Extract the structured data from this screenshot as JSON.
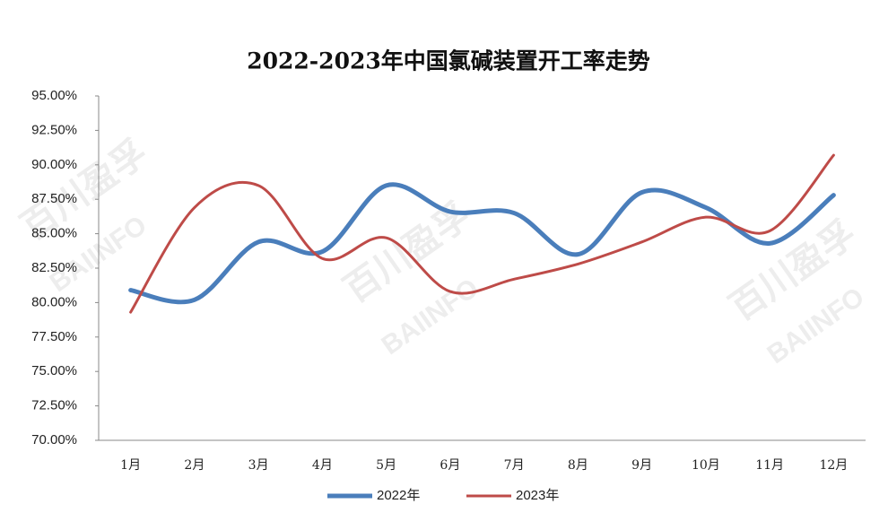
{
  "chart_data": {
    "type": "line",
    "title": "2022-2023年中国氯碱装置开工率走势",
    "watermark": [
      "百川盈孚",
      "BAIINFO"
    ],
    "categories": [
      "1月",
      "2月",
      "3月",
      "4月",
      "5月",
      "6月",
      "7月",
      "8月",
      "9月",
      "10月",
      "11月",
      "12月"
    ],
    "series": [
      {
        "name": "2022年",
        "color": "#4a7ebb",
        "values": [
          80.9,
          80.2,
          84.4,
          83.7,
          88.5,
          86.6,
          86.5,
          83.5,
          88.0,
          86.9,
          84.3,
          87.8
        ]
      },
      {
        "name": "2023年",
        "color": "#be4b48",
        "values": [
          79.3,
          86.9,
          88.5,
          83.2,
          84.7,
          80.8,
          81.7,
          82.8,
          84.4,
          86.2,
          85.2,
          90.7
        ]
      }
    ],
    "ylim": [
      70,
      95
    ],
    "yticks": [
      {
        "value": 70,
        "label": "70.00%"
      },
      {
        "value": 72.5,
        "label": "72.50%"
      },
      {
        "value": 75,
        "label": "75.00%"
      },
      {
        "value": 77.5,
        "label": "77.50%"
      },
      {
        "value": 80,
        "label": "80.00%"
      },
      {
        "value": 82.5,
        "label": "82.50%"
      },
      {
        "value": 85,
        "label": "85.00%"
      },
      {
        "value": 87.5,
        "label": "87.50%"
      },
      {
        "value": 90,
        "label": "90.00%"
      },
      {
        "value": 92.5,
        "label": "92.50%"
      },
      {
        "value": 95,
        "label": "95.00%"
      }
    ],
    "smooth": true,
    "legend": "bottom"
  }
}
